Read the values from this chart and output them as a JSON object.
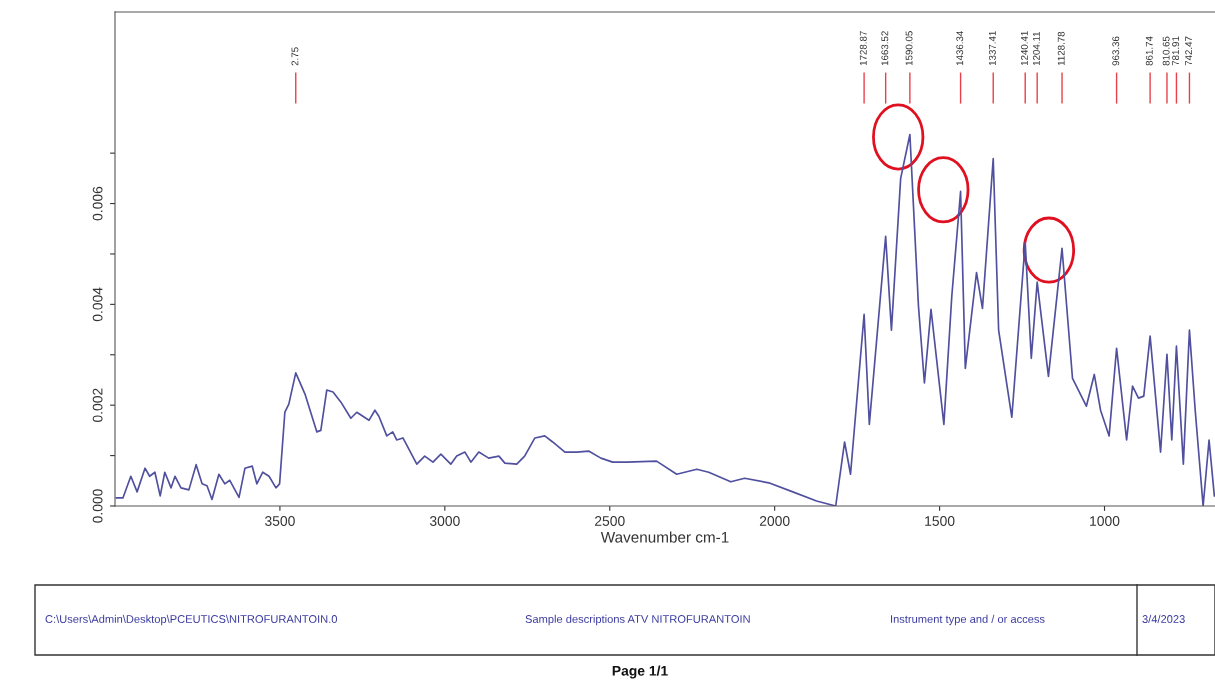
{
  "chart_data": {
    "type": "line",
    "xlabel": "Wavenumber cm-1",
    "x": [
      3996,
      3976,
      3952,
      3933,
      3909,
      3895,
      3879,
      3863,
      3849,
      3830,
      3818,
      3800,
      3776,
      3754,
      3736,
      3721,
      3706,
      3685,
      3667,
      3652,
      3624,
      3606,
      3584,
      3570,
      3552,
      3533,
      3512,
      3501,
      3485,
      3473,
      3452,
      3424,
      3388,
      3376,
      3358,
      3339,
      3315,
      3285,
      3267,
      3230,
      3212,
      3200,
      3176,
      3158,
      3146,
      3127,
      3085,
      3061,
      3036,
      3012,
      2982,
      2964,
      2939,
      2921,
      2897,
      2867,
      2836,
      2818,
      2782,
      2758,
      2727,
      2697,
      2673,
      2636,
      2600,
      2564,
      2527,
      2491,
      2449,
      2358,
      2297,
      2236,
      2200,
      2133,
      2091,
      2018,
      1945,
      1873,
      1815,
      1788,
      1770,
      1728.87,
      1713,
      1663.52,
      1646,
      1618,
      1590.05,
      1564,
      1546,
      1526,
      1487,
      1463,
      1436.34,
      1422,
      1388,
      1370,
      1337.41,
      1321,
      1281,
      1240.41,
      1222,
      1204.11,
      1170,
      1128.78,
      1097,
      1055,
      1031,
      1012,
      986,
      963.36,
      933,
      915,
      897,
      881,
      861.74,
      830,
      810.65,
      796,
      781.91,
      761,
      742.47,
      725,
      701,
      683,
      667
    ],
    "series": [
      {
        "color": "#50509f",
        "values": [
          0.00016,
          0.00016,
          0.00059,
          0.00028,
          0.00075,
          0.00059,
          0.00067,
          0.0002,
          0.00067,
          0.00036,
          0.00059,
          0.00036,
          0.00032,
          0.00082,
          0.00044,
          0.0004,
          0.00013,
          0.00063,
          0.00044,
          0.00051,
          0.00017,
          0.00075,
          0.00079,
          0.00044,
          0.00067,
          0.00059,
          0.00036,
          0.00044,
          0.00186,
          0.00202,
          0.00264,
          0.00222,
          0.00147,
          0.0015,
          0.0023,
          0.00226,
          0.00206,
          0.00174,
          0.00186,
          0.0017,
          0.0019,
          0.00178,
          0.00139,
          0.00147,
          0.00131,
          0.00135,
          0.00083,
          0.00099,
          0.00087,
          0.00103,
          0.00083,
          0.00099,
          0.00107,
          0.00087,
          0.00107,
          0.00095,
          0.00099,
          0.00085,
          0.00083,
          0.00099,
          0.00135,
          0.00139,
          0.00127,
          0.00107,
          0.00107,
          0.00109,
          0.00095,
          0.00087,
          0.00087,
          0.00089,
          0.00063,
          0.00073,
          0.00067,
          0.00048,
          0.00055,
          0.00046,
          0.00028,
          0.0001,
          0.0,
          0.00127,
          0.00063,
          0.0038,
          0.00162,
          0.00535,
          0.00349,
          0.0065,
          0.00737,
          0.00396,
          0.00244,
          0.0039,
          0.00162,
          0.00416,
          0.00624,
          0.00273,
          0.00463,
          0.00392,
          0.00689,
          0.00349,
          0.00176,
          0.00523,
          0.00293,
          0.00444,
          0.00257,
          0.00511,
          0.00253,
          0.00198,
          0.00261,
          0.0019,
          0.00139,
          0.00313,
          0.00131,
          0.00238,
          0.00214,
          0.00218,
          0.00337,
          0.00107,
          0.00301,
          0.00131,
          0.00317,
          0.00083,
          0.00349,
          0.0019,
          0.0,
          0.00131,
          0.0002
        ]
      }
    ],
    "xlim": [
      4000,
      665
    ],
    "ylim": [
      0,
      0.0098
    ],
    "xticks": [
      3500,
      3000,
      2500,
      2000,
      1500,
      1000
    ],
    "yticks": [
      {
        "value": 0,
        "label": "0.000"
      },
      {
        "value": 0.001,
        "label": null
      },
      {
        "value": 0.002,
        "label": "0.002"
      },
      {
        "value": 0.003,
        "label": null
      },
      {
        "value": 0.004,
        "label": "0.004"
      },
      {
        "value": 0.005,
        "label": null
      },
      {
        "value": 0.006,
        "label": "0.006"
      },
      {
        "value": 0.007,
        "label": null
      }
    ],
    "grid": false,
    "legend": false,
    "annotations": [
      {
        "text": "2.75",
        "x": 3452
      },
      {
        "text": "1728.87",
        "x": 1728.87
      },
      {
        "text": "1663.52",
        "x": 1663.52
      },
      {
        "text": "1590.05",
        "x": 1590.05
      },
      {
        "text": "1436.34",
        "x": 1436.34
      },
      {
        "text": "1337.41",
        "x": 1337.41
      },
      {
        "text": "1240.41",
        "x": 1240.41
      },
      {
        "text": "1204.11",
        "x": 1204.11
      },
      {
        "text": "1128.78",
        "x": 1128.78
      },
      {
        "text": "963.36",
        "x": 963.36
      },
      {
        "text": "861.74",
        "x": 861.74
      },
      {
        "text": "810.65",
        "x": 810.65
      },
      {
        "text": "781.91",
        "x": 781.91
      },
      {
        "text": "742.47",
        "x": 742.47
      },
      "C:\\Users\\Admin\\Desktop\\PCEUTICS\\NITROFURANTOIN.0",
      "Sample descriptions ATV NITROFURANTOIN",
      "Instrument type and / or access",
      "3/4/2023",
      "Page 1/1"
    ]
  }
}
